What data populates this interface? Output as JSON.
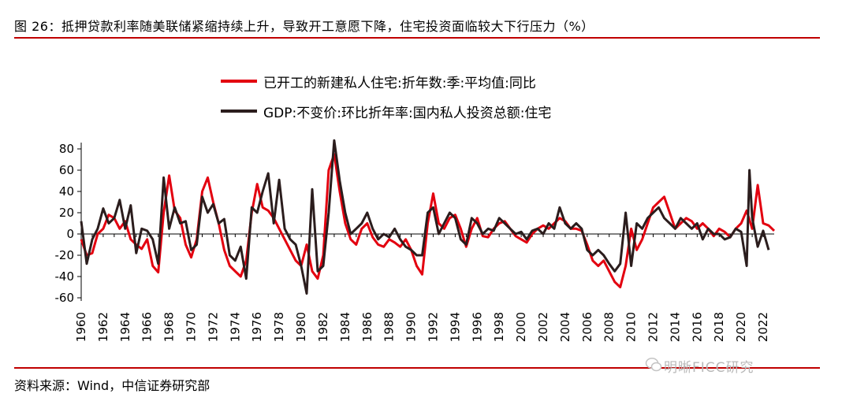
{
  "header": {
    "title": "图 26：抵押贷款利率随美联储紧缩持续上升，导致开工意愿下降，住宅投资面临较大下行压力（%）"
  },
  "footer": {
    "source": "资料来源：Wind，中信证券研究部",
    "watermark": "明晰FICC研究"
  },
  "colors": {
    "accent": "#c00000",
    "series1": "#e3000f",
    "series2": "#2b1d1d"
  },
  "chart_data": {
    "type": "line",
    "x_labels": [
      "1960",
      "1962",
      "1964",
      "1966",
      "1968",
      "1970",
      "1972",
      "1974",
      "1976",
      "1978",
      "1980",
      "1982",
      "1984",
      "1986",
      "1988",
      "1990",
      "1992",
      "1994",
      "1996",
      "1998",
      "2000",
      "2002",
      "2004",
      "2006",
      "2008",
      "2010",
      "2012",
      "2014",
      "2016",
      "2018",
      "2020",
      "2022"
    ],
    "xlim": [
      1960,
      2023
    ],
    "ylim": [
      -60,
      90
    ],
    "y_ticks": [
      -60,
      -40,
      -20,
      0,
      20,
      40,
      60,
      80
    ],
    "grid": false,
    "legend": "top",
    "series": [
      {
        "name": "已开工的新建私人住宅:折年数:季:平均值:同比",
        "color": "#e3000f",
        "points": [
          [
            1960.0,
            -5
          ],
          [
            1960.5,
            -20
          ],
          [
            1961.0,
            -18
          ],
          [
            1961.5,
            0
          ],
          [
            1962.0,
            5
          ],
          [
            1962.5,
            18
          ],
          [
            1963.0,
            15
          ],
          [
            1963.5,
            5
          ],
          [
            1964.0,
            12
          ],
          [
            1964.5,
            -5
          ],
          [
            1965.0,
            -10
          ],
          [
            1965.5,
            -14
          ],
          [
            1966.0,
            -5
          ],
          [
            1966.5,
            -30
          ],
          [
            1967.0,
            -36
          ],
          [
            1967.5,
            20
          ],
          [
            1968.0,
            55
          ],
          [
            1968.5,
            22
          ],
          [
            1969.0,
            15
          ],
          [
            1969.5,
            -10
          ],
          [
            1970.0,
            -22
          ],
          [
            1970.5,
            -5
          ],
          [
            1971.0,
            40
          ],
          [
            1971.5,
            53
          ],
          [
            1972.0,
            30
          ],
          [
            1972.5,
            10
          ],
          [
            1973.0,
            -15
          ],
          [
            1973.5,
            -30
          ],
          [
            1974.0,
            -35
          ],
          [
            1974.5,
            -40
          ],
          [
            1975.0,
            -25
          ],
          [
            1975.5,
            20
          ],
          [
            1976.0,
            47
          ],
          [
            1976.5,
            25
          ],
          [
            1977.0,
            22
          ],
          [
            1977.5,
            15
          ],
          [
            1978.0,
            5
          ],
          [
            1978.5,
            -5
          ],
          [
            1979.0,
            -15
          ],
          [
            1979.5,
            -25
          ],
          [
            1980.0,
            -30
          ],
          [
            1980.5,
            -10
          ],
          [
            1981.0,
            -35
          ],
          [
            1981.5,
            -42
          ],
          [
            1982.0,
            -20
          ],
          [
            1982.5,
            60
          ],
          [
            1983.0,
            75
          ],
          [
            1983.5,
            40
          ],
          [
            1984.0,
            10
          ],
          [
            1984.5,
            -5
          ],
          [
            1985.0,
            -10
          ],
          [
            1985.5,
            5
          ],
          [
            1986.0,
            10
          ],
          [
            1986.5,
            -3
          ],
          [
            1987.0,
            -10
          ],
          [
            1987.5,
            -12
          ],
          [
            1988.0,
            -5
          ],
          [
            1988.5,
            -8
          ],
          [
            1989.0,
            -12
          ],
          [
            1989.5,
            -5
          ],
          [
            1990.0,
            -15
          ],
          [
            1990.5,
            -30
          ],
          [
            1991.0,
            -38
          ],
          [
            1991.5,
            10
          ],
          [
            1992.0,
            38
          ],
          [
            1992.5,
            10
          ],
          [
            1993.0,
            5
          ],
          [
            1993.5,
            15
          ],
          [
            1994.0,
            18
          ],
          [
            1994.5,
            5
          ],
          [
            1995.0,
            -12
          ],
          [
            1995.5,
            5
          ],
          [
            1996.0,
            15
          ],
          [
            1996.5,
            -2
          ],
          [
            1997.0,
            -3
          ],
          [
            1997.5,
            5
          ],
          [
            1998.0,
            10
          ],
          [
            1998.5,
            12
          ],
          [
            1999.0,
            5
          ],
          [
            1999.5,
            -2
          ],
          [
            2000.0,
            -5
          ],
          [
            2000.5,
            -8
          ],
          [
            2001.0,
            0
          ],
          [
            2001.5,
            5
          ],
          [
            2002.0,
            8
          ],
          [
            2002.5,
            5
          ],
          [
            2003.0,
            10
          ],
          [
            2003.5,
            15
          ],
          [
            2004.0,
            12
          ],
          [
            2004.5,
            5
          ],
          [
            2005.0,
            5
          ],
          [
            2005.5,
            3
          ],
          [
            2006.0,
            -10
          ],
          [
            2006.5,
            -25
          ],
          [
            2007.0,
            -30
          ],
          [
            2007.5,
            -25
          ],
          [
            2008.0,
            -35
          ],
          [
            2008.5,
            -45
          ],
          [
            2009.0,
            -50
          ],
          [
            2009.5,
            -30
          ],
          [
            2010.0,
            5
          ],
          [
            2010.5,
            -15
          ],
          [
            2011.0,
            -5
          ],
          [
            2011.5,
            10
          ],
          [
            2012.0,
            25
          ],
          [
            2012.5,
            30
          ],
          [
            2013.0,
            35
          ],
          [
            2013.5,
            20
          ],
          [
            2014.0,
            5
          ],
          [
            2014.5,
            10
          ],
          [
            2015.0,
            15
          ],
          [
            2015.5,
            12
          ],
          [
            2016.0,
            5
          ],
          [
            2016.5,
            10
          ],
          [
            2017.0,
            5
          ],
          [
            2017.5,
            -2
          ],
          [
            2018.0,
            5
          ],
          [
            2018.5,
            2
          ],
          [
            2019.0,
            -3
          ],
          [
            2019.5,
            5
          ],
          [
            2020.0,
            10
          ],
          [
            2020.5,
            22
          ],
          [
            2021.0,
            5
          ],
          [
            2021.5,
            46
          ],
          [
            2022.0,
            10
          ],
          [
            2022.5,
            8
          ],
          [
            2023.0,
            3
          ]
        ]
      },
      {
        "name": "GDP:不变价:环比折年率:国内私人投资总额:住宅",
        "color": "#2b1d1d",
        "points": [
          [
            1960.0,
            12
          ],
          [
            1960.5,
            -28
          ],
          [
            1961.0,
            -5
          ],
          [
            1961.5,
            5
          ],
          [
            1962.0,
            24
          ],
          [
            1962.5,
            10
          ],
          [
            1963.0,
            15
          ],
          [
            1963.5,
            32
          ],
          [
            1964.0,
            5
          ],
          [
            1964.5,
            27
          ],
          [
            1965.0,
            -18
          ],
          [
            1965.5,
            5
          ],
          [
            1966.0,
            3
          ],
          [
            1966.5,
            -5
          ],
          [
            1967.0,
            -28
          ],
          [
            1967.5,
            53
          ],
          [
            1968.0,
            5
          ],
          [
            1968.5,
            25
          ],
          [
            1969.0,
            10
          ],
          [
            1969.5,
            12
          ],
          [
            1970.0,
            -15
          ],
          [
            1970.5,
            -10
          ],
          [
            1971.0,
            35
          ],
          [
            1971.5,
            20
          ],
          [
            1972.0,
            28
          ],
          [
            1972.5,
            10
          ],
          [
            1973.0,
            14
          ],
          [
            1973.5,
            -20
          ],
          [
            1974.0,
            -25
          ],
          [
            1974.5,
            -12
          ],
          [
            1975.0,
            -42
          ],
          [
            1975.5,
            25
          ],
          [
            1976.0,
            20
          ],
          [
            1976.5,
            40
          ],
          [
            1977.0,
            57
          ],
          [
            1977.5,
            10
          ],
          [
            1978.0,
            51
          ],
          [
            1978.5,
            5
          ],
          [
            1979.0,
            -5
          ],
          [
            1979.5,
            -10
          ],
          [
            1980.0,
            -30
          ],
          [
            1980.5,
            -56
          ],
          [
            1981.0,
            42
          ],
          [
            1981.5,
            -35
          ],
          [
            1982.0,
            -30
          ],
          [
            1982.5,
            20
          ],
          [
            1983.0,
            88
          ],
          [
            1983.5,
            50
          ],
          [
            1984.0,
            20
          ],
          [
            1984.5,
            0
          ],
          [
            1985.0,
            5
          ],
          [
            1985.5,
            10
          ],
          [
            1986.0,
            20
          ],
          [
            1986.5,
            5
          ],
          [
            1987.0,
            -5
          ],
          [
            1987.5,
            0
          ],
          [
            1988.0,
            -3
          ],
          [
            1988.5,
            5
          ],
          [
            1989.0,
            -5
          ],
          [
            1989.5,
            -12
          ],
          [
            1990.0,
            -15
          ],
          [
            1990.5,
            -20
          ],
          [
            1991.0,
            -20
          ],
          [
            1991.5,
            20
          ],
          [
            1992.0,
            25
          ],
          [
            1992.5,
            0
          ],
          [
            1993.0,
            10
          ],
          [
            1993.5,
            20
          ],
          [
            1994.0,
            15
          ],
          [
            1994.5,
            -5
          ],
          [
            1995.0,
            -10
          ],
          [
            1995.5,
            15
          ],
          [
            1996.0,
            10
          ],
          [
            1996.5,
            0
          ],
          [
            1997.0,
            5
          ],
          [
            1997.5,
            3
          ],
          [
            1998.0,
            15
          ],
          [
            1998.5,
            10
          ],
          [
            1999.0,
            5
          ],
          [
            1999.5,
            0
          ],
          [
            2000.0,
            2
          ],
          [
            2000.5,
            -5
          ],
          [
            2001.0,
            3
          ],
          [
            2001.5,
            5
          ],
          [
            2002.0,
            0
          ],
          [
            2002.5,
            10
          ],
          [
            2003.0,
            5
          ],
          [
            2003.5,
            25
          ],
          [
            2004.0,
            10
          ],
          [
            2004.5,
            5
          ],
          [
            2005.0,
            10
          ],
          [
            2005.5,
            5
          ],
          [
            2006.0,
            -15
          ],
          [
            2006.5,
            -20
          ],
          [
            2007.0,
            -15
          ],
          [
            2007.5,
            -20
          ],
          [
            2008.0,
            -28
          ],
          [
            2008.5,
            -35
          ],
          [
            2009.0,
            -28
          ],
          [
            2009.5,
            20
          ],
          [
            2010.0,
            -30
          ],
          [
            2010.5,
            10
          ],
          [
            2011.0,
            5
          ],
          [
            2011.5,
            15
          ],
          [
            2012.0,
            20
          ],
          [
            2012.5,
            25
          ],
          [
            2013.0,
            15
          ],
          [
            2013.5,
            10
          ],
          [
            2014.0,
            5
          ],
          [
            2014.5,
            15
          ],
          [
            2015.0,
            10
          ],
          [
            2015.5,
            5
          ],
          [
            2016.0,
            10
          ],
          [
            2016.5,
            -5
          ],
          [
            2017.0,
            5
          ],
          [
            2017.5,
            0
          ],
          [
            2018.0,
            0
          ],
          [
            2018.5,
            -5
          ],
          [
            2019.0,
            -3
          ],
          [
            2019.5,
            5
          ],
          [
            2020.0,
            2
          ],
          [
            2020.5,
            -30
          ],
          [
            2020.75,
            60
          ],
          [
            2021.0,
            15
          ],
          [
            2021.5,
            -12
          ],
          [
            2022.0,
            3
          ],
          [
            2022.5,
            -15
          ]
        ]
      }
    ]
  }
}
